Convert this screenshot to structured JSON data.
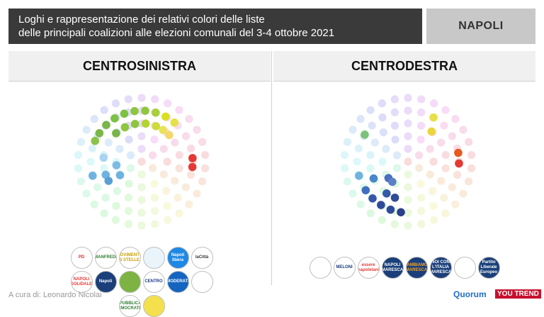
{
  "header": {
    "title_line1": "Loghi e rappresentazione dei relativi colori delle liste",
    "title_line2": "delle principali coalizioni alle elezioni comunali del 3-4 ottobre 2021",
    "city": "NAPOLI"
  },
  "panels": {
    "left": {
      "title": "CENTROSINISTRA"
    },
    "right": {
      "title": "CENTRODESTRA"
    }
  },
  "chart_data": [
    {
      "type": "other",
      "title": "CENTROSINISTRA",
      "description_kind": "dot-colour-wheel",
      "highlighted_dots": [
        {
          "angle": 98,
          "ring": 4,
          "color": "#8dc63f"
        },
        {
          "angle": 86,
          "ring": 4,
          "color": "#8dc63f"
        },
        {
          "angle": 74,
          "ring": 4,
          "color": "#a8cf3d"
        },
        {
          "angle": 110,
          "ring": 4,
          "color": "#7cc242"
        },
        {
          "angle": 122,
          "ring": 4,
          "color": "#7cc242"
        },
        {
          "angle": 134,
          "ring": 4,
          "color": "#7ab648"
        },
        {
          "angle": 146,
          "ring": 4,
          "color": "#7ab648"
        },
        {
          "angle": 62,
          "ring": 4,
          "color": "#d9e021"
        },
        {
          "angle": 50,
          "ring": 4,
          "color": "#e6e14a"
        },
        {
          "angle": 100,
          "ring": 3,
          "color": "#8dc63f"
        },
        {
          "angle": 116,
          "ring": 3,
          "color": "#8dc63f"
        },
        {
          "angle": 132,
          "ring": 3,
          "color": "#7ab648"
        },
        {
          "angle": 84,
          "ring": 3,
          "color": "#b5d334"
        },
        {
          "angle": 68,
          "ring": 3,
          "color": "#cddc39"
        },
        {
          "angle": 56,
          "ring": 3,
          "color": "#e8e35a"
        },
        {
          "angle": 44,
          "ring": 3,
          "color": "#f5d76e"
        },
        {
          "angle": 156,
          "ring": 4,
          "color": "#8bc34a"
        },
        {
          "angle": 4,
          "ring": 4,
          "color": "#e53935"
        },
        {
          "angle": -6,
          "ring": 4,
          "color": "#e53935"
        },
        {
          "angle": 196,
          "ring": 4,
          "color": "#6fb3e0"
        },
        {
          "angle": 200,
          "ring": 3,
          "color": "#6fb3e0"
        },
        {
          "angle": 212,
          "ring": 2,
          "color": "#6fb3e0"
        },
        {
          "angle": 188,
          "ring": 2,
          "color": "#7cbbe6"
        },
        {
          "angle": 210,
          "ring": 3,
          "color": "#5a9fd4"
        },
        {
          "angle": 174,
          "ring": 3,
          "color": "#a9d3f0"
        }
      ],
      "faded_color_hint": "pastel rainbow"
    },
    {
      "type": "other",
      "title": "CENTRODESTRA",
      "description_kind": "dot-colour-wheel",
      "highlighted_dots": [
        {
          "angle": 60,
          "ring": 4,
          "color": "#e6e14a"
        },
        {
          "angle": 52,
          "ring": 3,
          "color": "#ecd53a"
        },
        {
          "angle": 10,
          "ring": 4,
          "color": "#e85a1e"
        },
        {
          "angle": -2,
          "ring": 4,
          "color": "#e53935"
        },
        {
          "angle": 148,
          "ring": 4,
          "color": "#7cc27a"
        },
        {
          "angle": 196,
          "ring": 4,
          "color": "#6fb3e0"
        },
        {
          "angle": 206,
          "ring": 3,
          "color": "#4a86c8"
        },
        {
          "angle": 214,
          "ring": 4,
          "color": "#3f6fbf"
        },
        {
          "angle": 226,
          "ring": 4,
          "color": "#3558a8"
        },
        {
          "angle": 238,
          "ring": 4,
          "color": "#2e4a9a"
        },
        {
          "angle": 250,
          "ring": 4,
          "color": "#2e4a9a"
        },
        {
          "angle": 262,
          "ring": 4,
          "color": "#2a3f8c"
        },
        {
          "angle": 236,
          "ring": 3,
          "color": "#3558a8"
        },
        {
          "angle": 220,
          "ring": 2,
          "color": "#4a6fbf"
        },
        {
          "angle": 250,
          "ring": 3,
          "color": "#2e4a9a"
        },
        {
          "angle": 232,
          "ring": 2,
          "color": "#5b7fc7"
        }
      ],
      "faded_color_hint": "pastel rainbow"
    }
  ],
  "logos": {
    "left": [
      {
        "name": "pd-logo",
        "label": "PD",
        "bg": "#ffffff",
        "fg": "#d32f2f"
      },
      {
        "name": "manfredi-logo",
        "label": "MANFREDI",
        "bg": "#ffffff",
        "fg": "#2e7d32"
      },
      {
        "name": "movimento5stelle-logo",
        "label": "MOVIMENTO 5 STELLE",
        "bg": "#ffffff",
        "fg": "#c9a000"
      },
      {
        "name": "napoli-solidale-logo",
        "label": "",
        "bg": "#eaf4fb",
        "fg": "#1e88e5"
      },
      {
        "name": "napoli-libera-logo",
        "label": "Napoli libera",
        "bg": "#1e88e5",
        "fg": "#ffffff"
      },
      {
        "name": "la-citta-logo",
        "label": "laCittà",
        "bg": "#ffffff",
        "fg": "#333333"
      },
      {
        "name": "napoli-solidale-2-logo",
        "label": "NAPOLI SOLIDALE",
        "bg": "#ffffff",
        "fg": "#e53935"
      },
      {
        "name": "napoli-logo",
        "label": "Napoli",
        "bg": "#1a3f7a",
        "fg": "#ffffff"
      },
      {
        "name": "europa-verde-logo",
        "label": "",
        "bg": "#7cb342",
        "fg": "#ffffff"
      },
      {
        "name": "centro-democratico-logo",
        "label": "CENTRO",
        "bg": "#ffffff",
        "fg": "#1e3a8a"
      },
      {
        "name": "moderati-logo",
        "label": "MODERATI",
        "bg": "#1565c0",
        "fg": "#ffffff"
      },
      {
        "name": "psi-logo",
        "label": "",
        "bg": "#ffffff",
        "fg": "#2e7d32"
      },
      {
        "name": "repubblicani-logo",
        "label": "REPUBBLICANI DEMOCRATICI",
        "bg": "#ffffff",
        "fg": "#2e7d32"
      },
      {
        "name": "giovani-logo",
        "label": "",
        "bg": "#f4e04d",
        "fg": "#2e7d32"
      }
    ],
    "right": [
      {
        "name": "forza-italia-logo",
        "label": "",
        "bg": "#ffffff",
        "fg": "#1e88e5"
      },
      {
        "name": "fratelli-italia-logo",
        "label": "MELONI",
        "bg": "#ffffff",
        "fg": "#1a3f7a"
      },
      {
        "name": "essere-napoletani-logo",
        "label": "essere napoletani",
        "bg": "#ffffff",
        "fg": "#e53935"
      },
      {
        "name": "napoli-maresca-logo",
        "label": "NAPOLI MARESCA",
        "bg": "#1a3f7a",
        "fg": "#ffffff"
      },
      {
        "name": "cambiamo-logo",
        "label": "CAMBIAMO! MARESCA",
        "bg": "#1a3f7a",
        "fg": "#f5a623"
      },
      {
        "name": "noi-italia-logo",
        "label": "NOI CON L'ITALIA MARESCA",
        "bg": "#1a3f7a",
        "fg": "#ffffff"
      },
      {
        "name": "udc-logo",
        "label": "",
        "bg": "#ffffff",
        "fg": "#1e88e5"
      },
      {
        "name": "partito-liberale-logo",
        "label": "Partito Liberale Europeo",
        "bg": "#1a3f7a",
        "fg": "#ffffff"
      }
    ]
  },
  "footer": {
    "credit": "A cura di: Leonardo Nicolai",
    "brand1": "Quorum",
    "brand2": "YOU TREND"
  }
}
